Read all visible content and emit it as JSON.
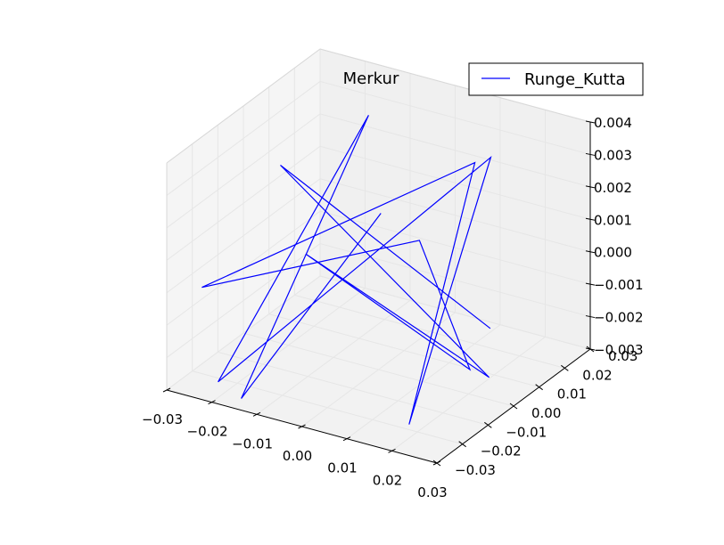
{
  "chart_data": {
    "type": "line3d",
    "title": "Merkur",
    "legend": {
      "placement": "top-right",
      "entries": [
        {
          "label": "Runge_Kutta",
          "color": "#0000ff"
        }
      ]
    },
    "series": [
      {
        "name": "Runge_Kutta",
        "color": "#0000ff",
        "points_3d": [
          [
            -0.004,
            0.008,
            0.0012
          ],
          [
            -0.016,
            -0.0255,
            -0.003
          ],
          [
            -0.009,
            0.012,
            0.0038
          ],
          [
            -0.022,
            -0.024,
            -0.0028
          ],
          [
            0.013,
            0.021,
            0.0028
          ],
          [
            0.017,
            -0.018,
            -0.003
          ],
          [
            0.013,
            0.0148,
            0.003
          ],
          [
            -0.029,
            -0.018,
            -0.0005
          ],
          [
            0.021,
            -0.021,
            0.003
          ],
          [
            0.022,
            -0.003,
            -0.002
          ],
          [
            -0.023,
            0.012,
            -0.001
          ],
          [
            0.024,
            0.001,
            -0.0024
          ],
          [
            -0.011,
            -0.019,
            0.004
          ],
          [
            0.022,
            0.005,
            -0.0012
          ]
        ]
      }
    ],
    "axes": {
      "x": {
        "lim": [
          -0.03,
          0.03
        ],
        "ticks": [
          "−0.03",
          "−0.02",
          "−0.01",
          "0.00",
          "0.01",
          "0.02",
          "0.03"
        ]
      },
      "y": {
        "lim": [
          -0.03,
          0.03
        ],
        "ticks": [
          "−0.03",
          "−0.02",
          "−0.01",
          "0.00",
          "0.01",
          "0.02",
          "0.03"
        ]
      },
      "z": {
        "lim": [
          -0.003,
          0.004
        ],
        "ticks": [
          "−0.003",
          "−0.002",
          "−0.001",
          "0.000",
          "0.001",
          "0.002",
          "0.003",
          "0.004"
        ]
      }
    },
    "grid": true,
    "pane_color": "#f0f0f0",
    "grid_color": "#e6e6e6"
  }
}
